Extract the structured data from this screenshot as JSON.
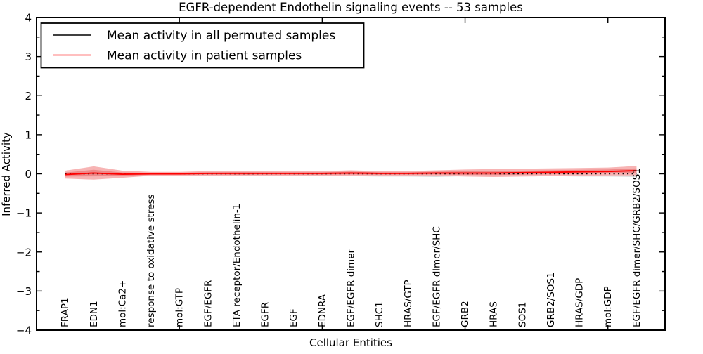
{
  "chart_data": {
    "type": "line",
    "title": "EGFR-dependent Endothelin signaling events -- 53 samples",
    "xlabel": "Cellular Entities",
    "ylabel": "Inferred Activity",
    "ylim": [
      -4,
      4
    ],
    "xlim": [
      0,
      22
    ],
    "yticks_major": [
      -4,
      -3,
      -2,
      -1,
      0,
      1,
      2,
      3,
      4
    ],
    "yticks_minor": [
      -3.5,
      -2.5,
      -1.5,
      -0.5,
      0.5,
      1.5,
      2.5,
      3.5
    ],
    "xticks_major": [
      5,
      10,
      15,
      20
    ],
    "grid": false,
    "legend_position": "upper left",
    "categories": [
      "FRAP1",
      "EDN1",
      "mol:Ca2+",
      "response to oxidative stress",
      "mol:GTP",
      "EGF/EGFR",
      "ETA receptor/Endothelin-1",
      "EGFR",
      "EGF",
      "EDNRA",
      "EGF/EGFR dimer",
      "SHC1",
      "HRAS/GTP",
      "EGF/EGFR dimer/SHC",
      "GRB2",
      "HRAS",
      "SOS1",
      "GRB2/SOS1",
      "HRAS/GDP",
      "mol:GDP",
      "EGF/EGFR dimer/SHC/GRB2/SOS1"
    ],
    "x": [
      1,
      2,
      3,
      4,
      5,
      6,
      7,
      8,
      9,
      10,
      11,
      12,
      13,
      14,
      15,
      16,
      17,
      18,
      19,
      20,
      21
    ],
    "series": [
      {
        "name": "Mean activity in all permuted samples",
        "color": "#000000",
        "style": "dotted",
        "values": [
          0,
          0,
          0,
          0,
          0,
          0,
          0,
          0,
          0,
          0,
          0,
          0,
          0,
          0,
          0,
          0,
          0,
          0,
          0,
          0,
          0
        ],
        "band_half_widths": [
          0.04,
          0.05,
          0.04,
          0.04,
          0.04,
          0.05,
          0.05,
          0.05,
          0.05,
          0.05,
          0.06,
          0.07,
          0.07,
          0.08,
          0.06,
          0.05,
          0.06,
          0.06,
          0.07,
          0.07,
          0.08
        ],
        "band_color": "#dcdcdc"
      },
      {
        "name": "Mean activity in patient samples",
        "color": "#ff0000",
        "style": "solid",
        "values": [
          -0.02,
          0.02,
          -0.01,
          0,
          0,
          0.01,
          0.01,
          0.01,
          0.01,
          0.01,
          0.02,
          0.01,
          0.01,
          0.02,
          0.02,
          0.02,
          0.03,
          0.04,
          0.05,
          0.06,
          0.08
        ],
        "band_half_widths": [
          0.1,
          0.17,
          0.09,
          0.05,
          0.05,
          0.06,
          0.07,
          0.06,
          0.06,
          0.06,
          0.07,
          0.06,
          0.06,
          0.07,
          0.09,
          0.1,
          0.1,
          0.1,
          0.1,
          0.1,
          0.12
        ],
        "band_color": "#f7b4b4",
        "band_inner_color": "#ee8888"
      }
    ]
  }
}
